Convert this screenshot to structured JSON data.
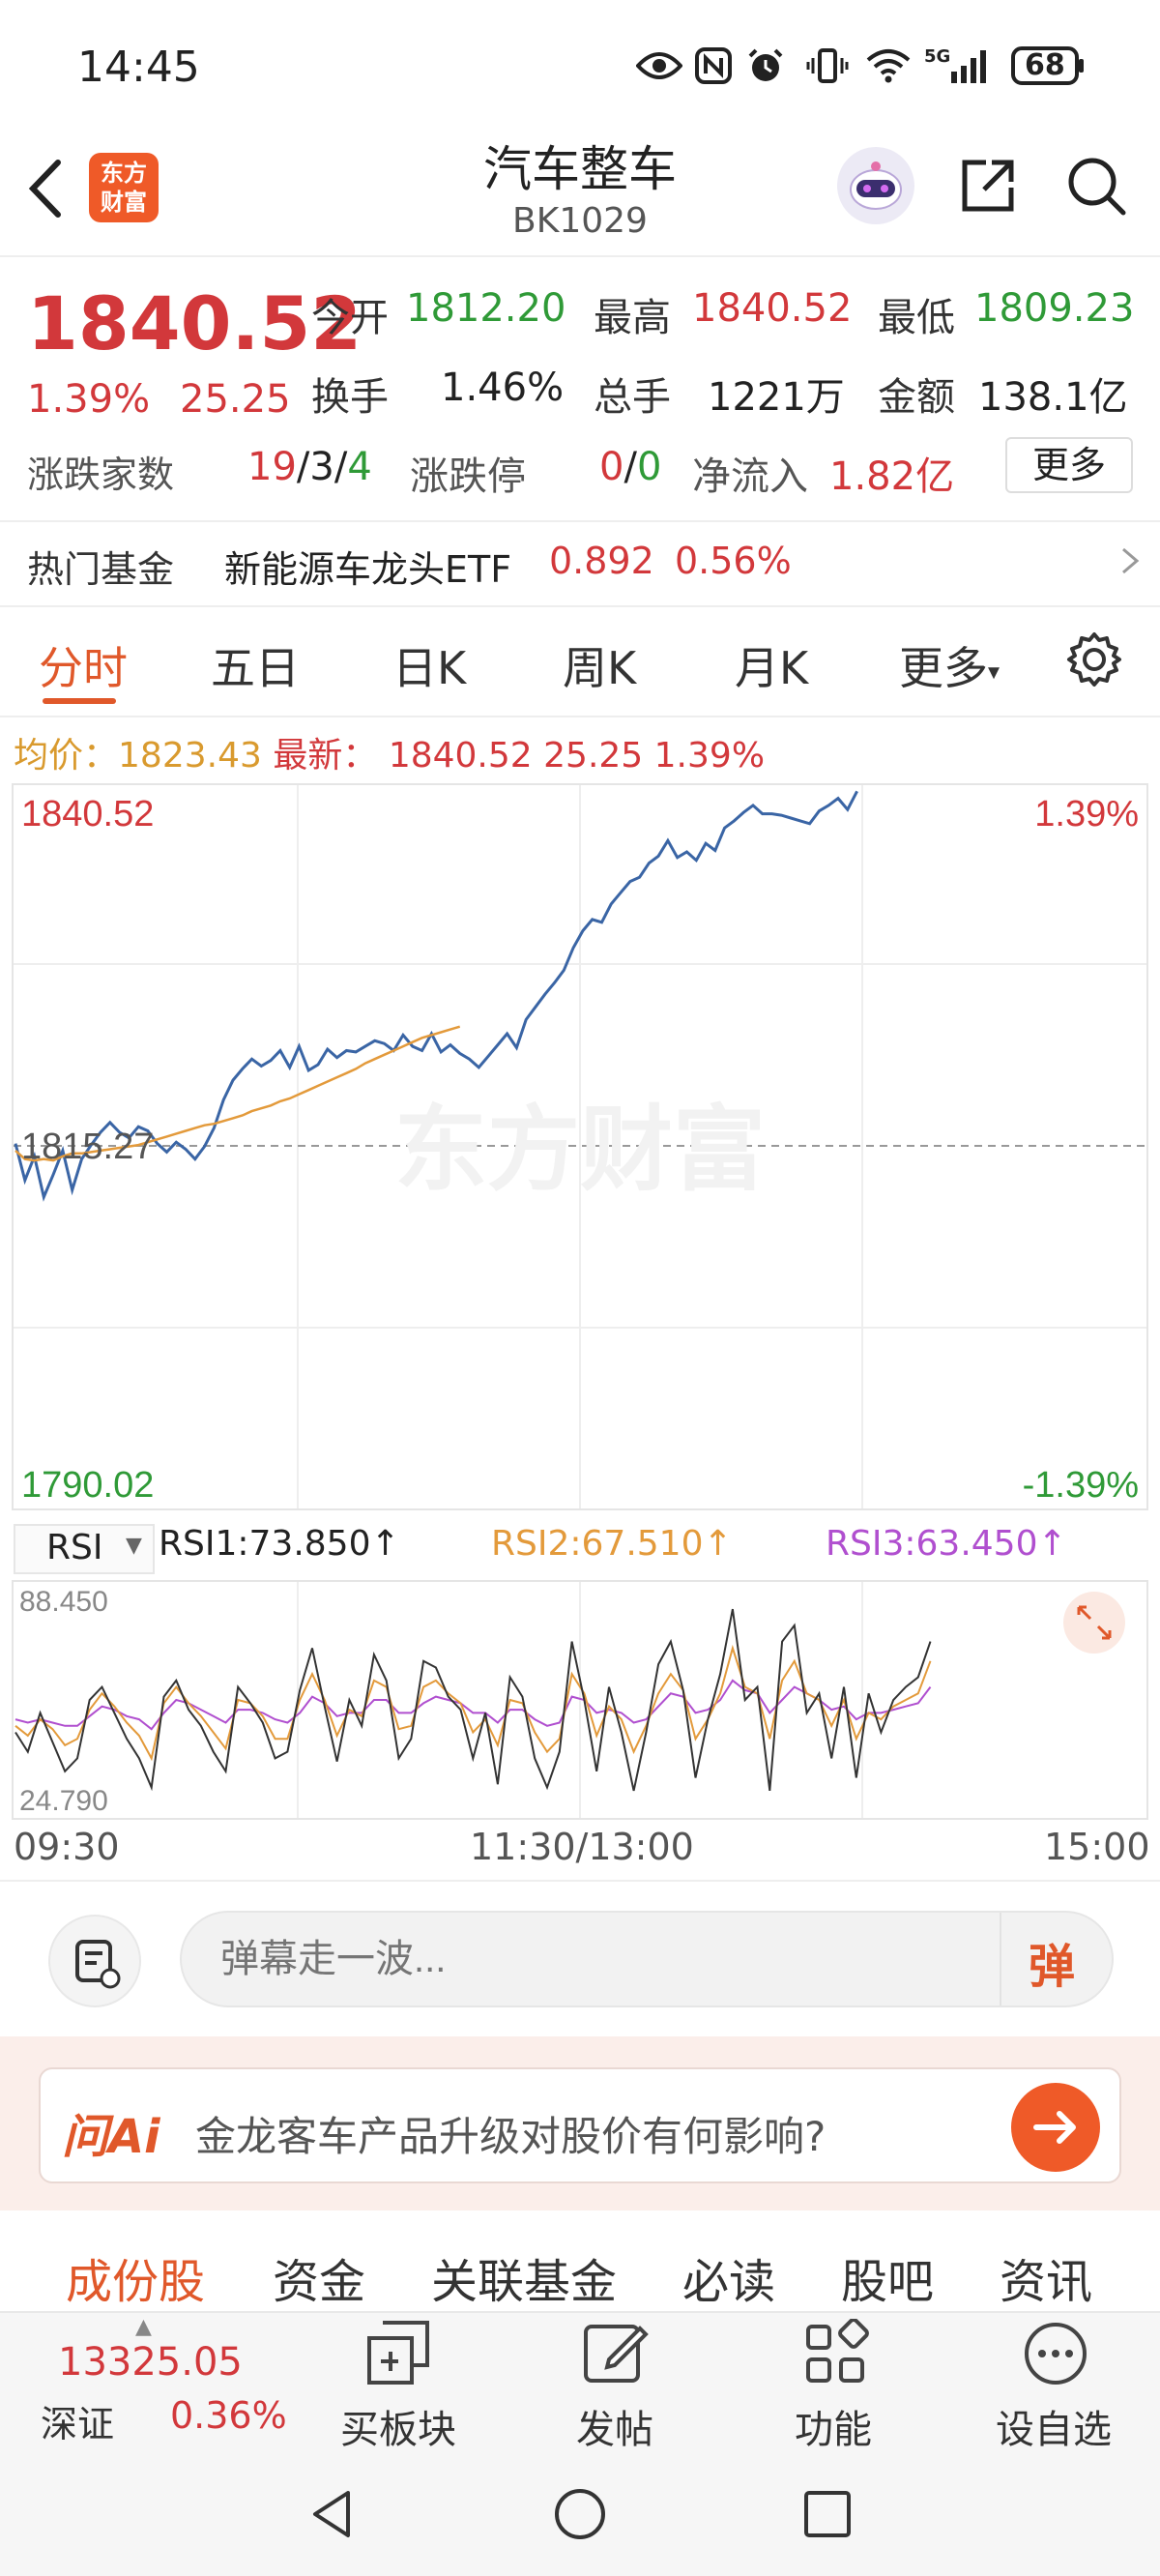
{
  "status_bar": {
    "time": "14:45",
    "battery": "68",
    "network": "5G"
  },
  "header": {
    "title": "汽车整车",
    "code": "BK1029",
    "logo_text_1": "东方",
    "logo_text_2": "财富"
  },
  "quote": {
    "price": "1840.52",
    "change_pct": "1.39%",
    "change": "25.25",
    "open_label": "今开",
    "open": "1812.20",
    "high_label": "最高",
    "high": "1840.52",
    "low_label": "最低",
    "low": "1809.23",
    "turnover_label": "换手",
    "turnover": "1.46%",
    "volume_label": "总手",
    "volume": "1221万",
    "amount_label": "金额",
    "amount": "138.1亿",
    "updown_label": "涨跌家数",
    "up_count": "19",
    "flat_count": "3",
    "down_count": "4",
    "limit_label": "涨跌停",
    "limit_up": "0",
    "limit_down": "0",
    "netflow_label": "净流入",
    "netflow": "1.82亿",
    "more_label": "更多"
  },
  "hot_fund": {
    "label": "热门基金",
    "name": "新能源车龙头ETF",
    "price": "0.892",
    "pct": "0.56%"
  },
  "tabs": [
    "分时",
    "五日",
    "日K",
    "周K",
    "月K",
    "更多"
  ],
  "legend": {
    "avg_label": "均价：",
    "avg": "1823.43",
    "latest_label": "最新：",
    "latest": "1840.52",
    "change": "25.25",
    "pct": "1.39%"
  },
  "chart_data": {
    "type": "line",
    "ymax": "1840.52",
    "ymid": "1815.27",
    "ymin": "1790.02",
    "pct_top": "1.39%",
    "pct_bottom": "-1.39%",
    "ylim": [
      1790.02,
      1840.52
    ],
    "x_ticks": [
      "09:30",
      "11:30/13:00",
      "15:00"
    ],
    "series": [
      {
        "values": [
          1815.5,
          1812.9,
          1814.6,
          1811.7,
          1813.3,
          1815.0,
          1812.2,
          1814.4,
          1815.4,
          1816.3,
          1817.0,
          1816.3,
          1815.9,
          1816.7,
          1816.4,
          1815.5,
          1814.9,
          1815.6,
          1815.1,
          1814.4,
          1815.3,
          1816.6,
          1818.6,
          1820.0,
          1820.8,
          1821.5,
          1821.0,
          1821.4,
          1822.1,
          1820.9,
          1822.4,
          1820.7,
          1821.1,
          1822.2,
          1821.6,
          1822.1,
          1822.0,
          1822.4,
          1822.8,
          1822.6,
          1822.1,
          1823.2,
          1822.4,
          1822.1,
          1823.3,
          1822.0,
          1822.5,
          1821.9,
          1821.5,
          1820.9,
          1821.7,
          1822.5,
          1823.3,
          1822.3,
          1824.3,
          1825.2,
          1826.1,
          1826.9,
          1827.8,
          1829.4,
          1830.6,
          1831.4,
          1831.2,
          1832.5,
          1833.3,
          1834.1,
          1834.4,
          1835.4,
          1835.9,
          1837.0,
          1835.8,
          1836.2,
          1835.6,
          1836.8,
          1836.3,
          1837.9,
          1838.4,
          1839.0,
          1839.5,
          1838.9,
          1838.9,
          1838.8,
          1838.6,
          1838.4,
          1838.2,
          1839.1,
          1839.5,
          1840.0,
          1839.2,
          1840.5
        ]
      },
      {
        "values": [
          1815.0,
          1814.4,
          1814.3,
          1814.4,
          1814.3,
          1814.6,
          1814.8,
          1814.8,
          1814.9,
          1815.0,
          1815.1,
          1815.2,
          1815.3,
          1815.4,
          1815.6,
          1815.8,
          1816.0,
          1816.2,
          1816.4,
          1816.6,
          1816.8,
          1816.9,
          1817.1,
          1817.3,
          1817.5,
          1817.8,
          1818.0,
          1818.2,
          1818.5,
          1818.7,
          1819.0,
          1819.3,
          1819.6,
          1819.9,
          1820.2,
          1820.5,
          1820.8,
          1821.2,
          1821.5,
          1821.8,
          1822.1,
          1822.4,
          1822.7,
          1823.0,
          1823.2,
          1823.4,
          1823.6,
          1823.8
        ]
      }
    ]
  },
  "rsi": {
    "selector": "RSI",
    "rsi1_label": "RSI1:73.850↑",
    "rsi2_label": "RSI2:67.510↑",
    "rsi3_label": "RSI3:63.450↑",
    "max": "88.450",
    "min": "24.790",
    "colors": {
      "rsi1": "#333333",
      "rsi2": "#e39a3b",
      "rsi3": "#b04fcf"
    },
    "rsi1": [
      46,
      40,
      52,
      43,
      34,
      38,
      56,
      60,
      52,
      44,
      38,
      29,
      57,
      62,
      53,
      48,
      40,
      34,
      60,
      55,
      49,
      38,
      40,
      59,
      72,
      54,
      37,
      56,
      48,
      70,
      62,
      38,
      44,
      68,
      66,
      57,
      53,
      38,
      52,
      30,
      63,
      57,
      38,
      29,
      40,
      74,
      56,
      34,
      60,
      46,
      28,
      46,
      67,
      74,
      59,
      32,
      50,
      64,
      84,
      56,
      60,
      28,
      74,
      79,
      52,
      58,
      38,
      60,
      32,
      58,
      46,
      56,
      60,
      63,
      74
    ],
    "rsi2": [
      48,
      45,
      50,
      47,
      42,
      44,
      53,
      58,
      54,
      49,
      45,
      38,
      55,
      60,
      55,
      51,
      46,
      41,
      56,
      55,
      51,
      44,
      44,
      56,
      64,
      56,
      45,
      53,
      51,
      62,
      60,
      47,
      48,
      60,
      62,
      58,
      55,
      46,
      50,
      42,
      56,
      55,
      46,
      40,
      44,
      64,
      58,
      45,
      54,
      50,
      40,
      48,
      58,
      64,
      59,
      44,
      50,
      58,
      72,
      60,
      58,
      44,
      62,
      68,
      58,
      56,
      48,
      56,
      44,
      52,
      50,
      54,
      56,
      58,
      68
    ],
    "rsi3": [
      50,
      49,
      50,
      49,
      48,
      48,
      51,
      54,
      53,
      51,
      50,
      47,
      52,
      56,
      55,
      53,
      51,
      49,
      53,
      53,
      52,
      50,
      49,
      52,
      57,
      55,
      51,
      52,
      52,
      56,
      56,
      52,
      52,
      55,
      57,
      56,
      55,
      52,
      52,
      49,
      53,
      53,
      50,
      48,
      49,
      57,
      56,
      52,
      53,
      52,
      49,
      50,
      54,
      58,
      57,
      52,
      53,
      56,
      62,
      59,
      58,
      52,
      56,
      60,
      58,
      56,
      53,
      54,
      50,
      52,
      52,
      53,
      54,
      55,
      60
    ]
  },
  "input": {
    "placeholder": "弹幕走一波...",
    "send_label": "弹"
  },
  "ai": {
    "badge": "问Ai",
    "question": "金龙客车产品升级对股价有何影响?"
  },
  "sub_tabs": [
    "成份股",
    "资金",
    "关联基金",
    "必读",
    "股吧",
    "资讯"
  ],
  "bottom": {
    "index_value": "13325.05",
    "index_name": "深证",
    "index_pct": "0.36%",
    "items": [
      "买板块",
      "发帖",
      "功能",
      "设自选"
    ]
  },
  "watermark": "东方财富"
}
